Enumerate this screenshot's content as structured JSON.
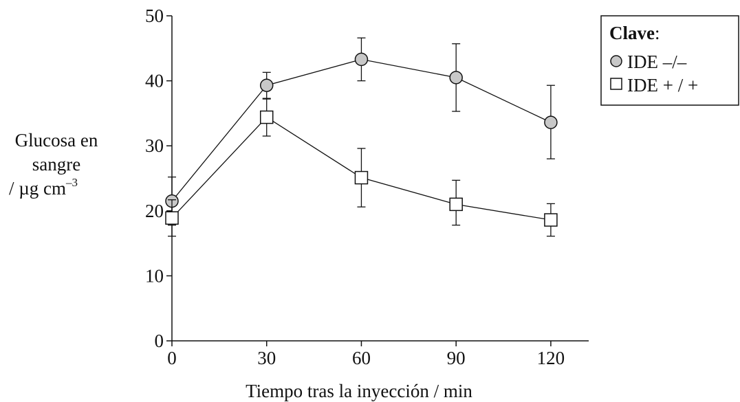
{
  "chart_data": {
    "type": "line",
    "title": "",
    "xlabel": "Tiempo tras la inyección / min",
    "ylabel_lines": [
      "Glucosa en",
      "sangre",
      "/ µg cm",
      "–3"
    ],
    "x": [
      0,
      30,
      60,
      90,
      120
    ],
    "xlim": [
      0,
      132
    ],
    "ylim": [
      0,
      50
    ],
    "x_ticks": [
      0,
      30,
      60,
      90,
      120
    ],
    "y_ticks": [
      0,
      10,
      20,
      30,
      40,
      50
    ],
    "grid": false,
    "legend": {
      "title": "Clave",
      "title_suffix": ":",
      "placement": "top-right"
    },
    "series": [
      {
        "name": "IDE –/–",
        "marker": "circle",
        "values": [
          21.5,
          39.3,
          43.3,
          40.5,
          33.6
        ],
        "err_upper": [
          25.2,
          41.3,
          46.6,
          45.7,
          39.3
        ],
        "err_lower": [
          17.8,
          37.3,
          40.0,
          35.3,
          28.0
        ]
      },
      {
        "name": "IDE + / +",
        "marker": "square",
        "values": [
          18.9,
          34.4,
          25.1,
          21.0,
          18.6
        ],
        "err_upper": [
          21.7,
          37.2,
          29.6,
          24.7,
          21.1
        ],
        "err_lower": [
          16.1,
          31.5,
          20.6,
          17.8,
          16.1
        ]
      }
    ],
    "colors": {
      "circle_fill": "#c8c8c8",
      "square_fill": "#ffffff",
      "stroke": "#111111"
    }
  }
}
